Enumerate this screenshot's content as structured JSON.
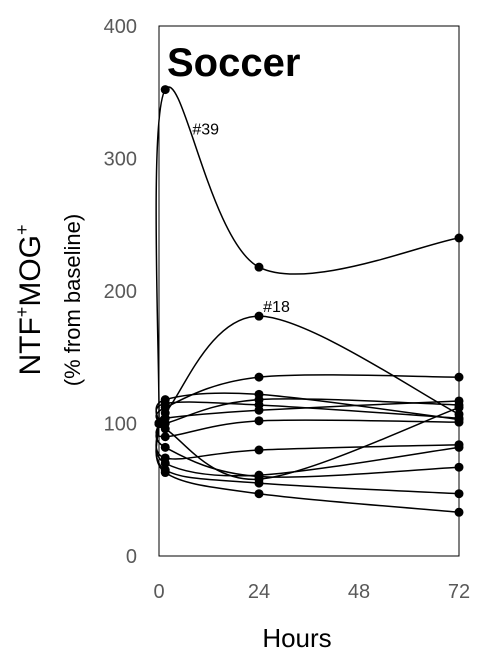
{
  "chart_data": {
    "type": "line",
    "title": "Soccer",
    "xlabel": "Hours",
    "ylabel": {
      "main": "NTF",
      "sup1": "+",
      "main2": "MOG",
      "sup2": "+",
      "sub": "(% from baseline)"
    },
    "x_ticks": [
      0,
      24,
      48,
      72
    ],
    "y_ticks": [
      0,
      100,
      200,
      300,
      400
    ],
    "xlim": [
      0,
      72
    ],
    "ylim": [
      0,
      400
    ],
    "grid": false,
    "x": [
      0,
      1.5,
      24,
      72
    ],
    "annotations": [
      {
        "text": "#39",
        "x": 8,
        "y": 318
      },
      {
        "text": "#18",
        "x": 25,
        "y": 184
      }
    ],
    "series": [
      {
        "values": [
          100,
          352,
          218,
          240
        ]
      },
      {
        "values": [
          100,
          108,
          181,
          107
        ]
      },
      {
        "values": [
          100,
          112,
          135,
          135
        ]
      },
      {
        "values": [
          100,
          118,
          122,
          103
        ]
      },
      {
        "values": [
          100,
          100,
          118,
          114
        ]
      },
      {
        "values": [
          100,
          115,
          114,
          104
        ]
      },
      {
        "values": [
          100,
          104,
          110,
          117
        ]
      },
      {
        "values": [
          100,
          90,
          102,
          101
        ]
      },
      {
        "values": [
          100,
          74,
          80,
          84
        ]
      },
      {
        "values": [
          100,
          70,
          61,
          82
        ]
      },
      {
        "values": [
          100,
          65,
          55,
          47
        ]
      },
      {
        "values": [
          100,
          63,
          47,
          33
        ]
      },
      {
        "values": [
          100,
          82,
          60,
          67
        ]
      },
      {
        "values": [
          100,
          96,
          58,
          112
        ]
      }
    ]
  }
}
